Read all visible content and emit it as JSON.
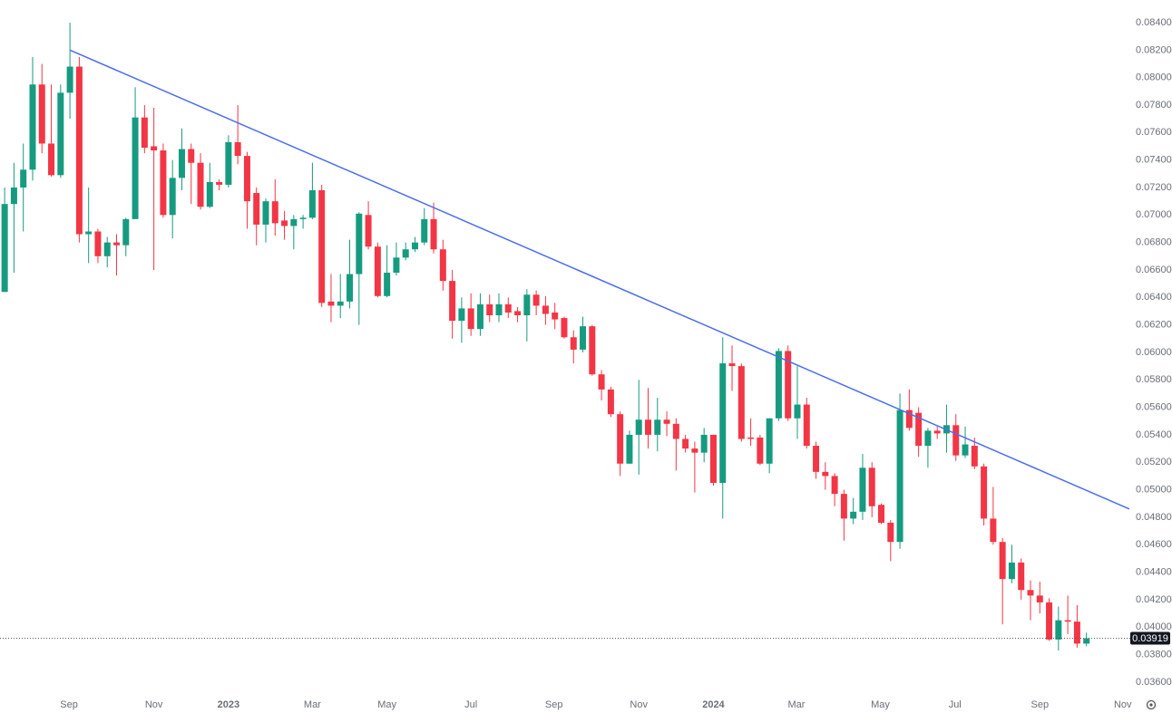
{
  "chart_data": {
    "type": "candlestick",
    "up_color": "#169b80",
    "down_color": "#f23645",
    "xlim": [
      -0.5,
      120.7
    ],
    "xticks": [
      {
        "value": 6.9,
        "label": "Sep"
      },
      {
        "value": 16.0,
        "label": "Nov"
      },
      {
        "value": 24.0,
        "label": "2023"
      },
      {
        "value": 33.0,
        "label": "Mar"
      },
      {
        "value": 41.0,
        "label": "May"
      },
      {
        "value": 50.0,
        "label": "Jul"
      },
      {
        "value": 58.9,
        "label": "Sep"
      },
      {
        "value": 68.0,
        "label": "Nov"
      },
      {
        "value": 76.0,
        "label": "2024"
      },
      {
        "value": 84.9,
        "label": "Mar"
      },
      {
        "value": 93.9,
        "label": "May"
      },
      {
        "value": 101.9,
        "label": "Jul"
      },
      {
        "value": 111.0,
        "label": "Sep"
      },
      {
        "value": 119.9,
        "label": "Nov"
      }
    ],
    "ylim": [
      0.0352,
      0.08565
    ],
    "yticks": [
      {
        "value": 0.036,
        "label": "0.03600"
      },
      {
        "value": 0.038,
        "label": "0.03800"
      },
      {
        "value": 0.04,
        "label": "0.04000"
      },
      {
        "value": 0.042,
        "label": "0.04200"
      },
      {
        "value": 0.044,
        "label": "0.04400"
      },
      {
        "value": 0.046,
        "label": "0.04600"
      },
      {
        "value": 0.048,
        "label": "0.04800"
      },
      {
        "value": 0.05,
        "label": "0.05000"
      },
      {
        "value": 0.052,
        "label": "0.05200"
      },
      {
        "value": 0.054,
        "label": "0.05400"
      },
      {
        "value": 0.056,
        "label": "0.05600"
      },
      {
        "value": 0.058,
        "label": "0.05800"
      },
      {
        "value": 0.06,
        "label": "0.06000"
      },
      {
        "value": 0.062,
        "label": "0.06200"
      },
      {
        "value": 0.064,
        "label": "0.06400"
      },
      {
        "value": 0.066,
        "label": "0.06600"
      },
      {
        "value": 0.068,
        "label": "0.06800"
      },
      {
        "value": 0.07,
        "label": "0.07000"
      },
      {
        "value": 0.072,
        "label": "0.07200"
      },
      {
        "value": 0.074,
        "label": "0.07400"
      },
      {
        "value": 0.076,
        "label": "0.07600"
      },
      {
        "value": 0.078,
        "label": "0.07800"
      },
      {
        "value": 0.08,
        "label": "0.08000"
      },
      {
        "value": 0.082,
        "label": "0.08200"
      },
      {
        "value": 0.084,
        "label": "0.08400"
      }
    ],
    "open": [
      0.0644,
      0.0708,
      0.072,
      0.0733,
      0.0795,
      0.0752,
      0.0729,
      0.0789,
      0.0808,
      0.0686,
      0.0688,
      0.067,
      0.068,
      0.0678,
      0.0697,
      0.0771,
      0.075,
      0.0747,
      0.07,
      0.0727,
      0.0748,
      0.0738,
      0.0706,
      0.0724,
      0.0722,
      0.0753,
      0.0743,
      0.0716,
      0.0693,
      0.071,
      0.0696,
      0.0692,
      0.0697,
      0.0698,
      0.0718,
      0.0637,
      0.0634,
      0.0637,
      0.0657,
      0.07,
      0.0677,
      0.0641,
      0.0658,
      0.0669,
      0.0675,
      0.068,
      0.0697,
      0.0675,
      0.0652,
      0.0623,
      0.0632,
      0.0617,
      0.0635,
      0.0627,
      0.0635,
      0.063,
      0.0627,
      0.0642,
      0.0634,
      0.0629,
      0.0625,
      0.0611,
      0.0602,
      0.0619,
      0.0584,
      0.0573,
      0.0555,
      0.0519,
      0.054,
      0.0551,
      0.054,
      0.0551,
      0.0548,
      0.0537,
      0.053,
      0.0527,
      0.054,
      0.0505,
      0.0592,
      0.059,
      0.0538,
      0.0538,
      0.0519,
      0.0552,
      0.0601,
      0.0552,
      0.0562,
      0.0532,
      0.0513,
      0.051,
      0.0497,
      0.0479,
      0.0484,
      0.0516,
      0.0489,
      0.0476,
      0.0462,
      0.0558,
      0.0556,
      0.0532,
      0.0543,
      0.0541,
      0.0547,
      0.0525,
      0.0532,
      0.0517,
      0.0479,
      0.0462,
      0.0435,
      0.0447,
      0.0427,
      0.0423,
      0.0418,
      0.0391,
      0.0405,
      0.0404,
      0.0388
    ],
    "high": [
      0.072,
      0.0738,
      0.0752,
      0.0815,
      0.081,
      0.0795,
      0.0795,
      0.084,
      0.0815,
      0.072,
      0.069,
      0.0684,
      0.0686,
      0.0698,
      0.0793,
      0.078,
      0.0778,
      0.0752,
      0.074,
      0.0763,
      0.0752,
      0.0745,
      0.0738,
      0.0726,
      0.0758,
      0.078,
      0.0746,
      0.072,
      0.0712,
      0.0726,
      0.0703,
      0.07,
      0.07,
      0.0738,
      0.0722,
      0.0657,
      0.0657,
      0.0682,
      0.0702,
      0.071,
      0.068,
      0.0678,
      0.068,
      0.068,
      0.0684,
      0.0705,
      0.0709,
      0.0682,
      0.066,
      0.064,
      0.0643,
      0.0643,
      0.0642,
      0.0643,
      0.064,
      0.0633,
      0.0646,
      0.0645,
      0.0641,
      0.0636,
      0.0626,
      0.0616,
      0.0626,
      0.062,
      0.0587,
      0.0575,
      0.0557,
      0.0543,
      0.058,
      0.0574,
      0.0567,
      0.0557,
      0.0552,
      0.054,
      0.0535,
      0.0545,
      0.054,
      0.0611,
      0.0605,
      0.0592,
      0.0552,
      0.054,
      0.0552,
      0.0603,
      0.0605,
      0.059,
      0.0567,
      0.0535,
      0.052,
      0.0512,
      0.05,
      0.0494,
      0.0526,
      0.052,
      0.049,
      0.0478,
      0.057,
      0.0573,
      0.056,
      0.0545,
      0.0546,
      0.0562,
      0.0555,
      0.0546,
      0.0538,
      0.0519,
      0.0502,
      0.0465,
      0.046,
      0.045,
      0.0434,
      0.0433,
      0.0421,
      0.0415,
      0.0423,
      0.0416,
      0.0396
    ],
    "low": [
      0.0644,
      0.0658,
      0.0688,
      0.0725,
      0.0745,
      0.0728,
      0.0727,
      0.077,
      0.068,
      0.0665,
      0.0665,
      0.0662,
      0.0656,
      0.067,
      0.0697,
      0.0745,
      0.066,
      0.0698,
      0.0683,
      0.0718,
      0.0708,
      0.0704,
      0.0705,
      0.0718,
      0.072,
      0.0737,
      0.069,
      0.0678,
      0.068,
      0.0685,
      0.0682,
      0.0675,
      0.069,
      0.0697,
      0.0633,
      0.0622,
      0.0625,
      0.0632,
      0.062,
      0.0675,
      0.064,
      0.064,
      0.0656,
      0.0667,
      0.0673,
      0.0678,
      0.0672,
      0.0645,
      0.061,
      0.0607,
      0.0612,
      0.0612,
      0.0622,
      0.0622,
      0.0625,
      0.0622,
      0.0608,
      0.0627,
      0.062,
      0.0617,
      0.061,
      0.0592,
      0.06,
      0.0583,
      0.0565,
      0.0553,
      0.051,
      0.0519,
      0.0511,
      0.053,
      0.0528,
      0.0539,
      0.0514,
      0.0527,
      0.0498,
      0.052,
      0.0503,
      0.0479,
      0.0572,
      0.0535,
      0.0532,
      0.0518,
      0.0512,
      0.055,
      0.055,
      0.0537,
      0.053,
      0.0508,
      0.05,
      0.0488,
      0.0463,
      0.0475,
      0.0478,
      0.048,
      0.0475,
      0.0448,
      0.0457,
      0.0543,
      0.0524,
      0.0516,
      0.0537,
      0.0527,
      0.0521,
      0.0523,
      0.0515,
      0.0474,
      0.046,
      0.0402,
      0.0432,
      0.042,
      0.0405,
      0.041,
      0.039,
      0.0383,
      0.0395,
      0.0385,
      0.0386
    ],
    "close": [
      0.0708,
      0.072,
      0.0733,
      0.0795,
      0.0752,
      0.0729,
      0.0789,
      0.0808,
      0.0686,
      0.0688,
      0.067,
      0.068,
      0.0678,
      0.0697,
      0.0771,
      0.0749,
      0.0747,
      0.07,
      0.0727,
      0.0748,
      0.0738,
      0.0706,
      0.0724,
      0.0722,
      0.0753,
      0.0743,
      0.071,
      0.0693,
      0.071,
      0.0694,
      0.0692,
      0.0697,
      0.0698,
      0.0718,
      0.0636,
      0.0634,
      0.0637,
      0.0657,
      0.0701,
      0.0677,
      0.0641,
      0.0658,
      0.0669,
      0.0675,
      0.068,
      0.0697,
      0.0675,
      0.0652,
      0.0623,
      0.0632,
      0.0617,
      0.0635,
      0.0627,
      0.0635,
      0.0629,
      0.0627,
      0.0642,
      0.0634,
      0.0628,
      0.0624,
      0.0611,
      0.0602,
      0.0619,
      0.0584,
      0.0573,
      0.0555,
      0.0519,
      0.054,
      0.0551,
      0.054,
      0.0551,
      0.0548,
      0.0537,
      0.053,
      0.0527,
      0.054,
      0.0505,
      0.0592,
      0.059,
      0.0537,
      0.0537,
      0.0519,
      0.0552,
      0.0601,
      0.0552,
      0.0562,
      0.0532,
      0.0513,
      0.051,
      0.0497,
      0.0479,
      0.0484,
      0.0516,
      0.0488,
      0.0476,
      0.0462,
      0.0558,
      0.0545,
      0.0532,
      0.0543,
      0.0541,
      0.0547,
      0.0525,
      0.0533,
      0.0517,
      0.0479,
      0.0462,
      0.0435,
      0.0447,
      0.0427,
      0.0423,
      0.0418,
      0.0391,
      0.0405,
      0.0404,
      0.0388,
      0.03919
    ],
    "trendline": {
      "color": "#4a6ef0",
      "x": [
        7.0,
        120.6
      ],
      "values": [
        0.082,
        0.0486
      ]
    },
    "last_price": {
      "value": 0.03919,
      "label": "0.03919"
    }
  }
}
